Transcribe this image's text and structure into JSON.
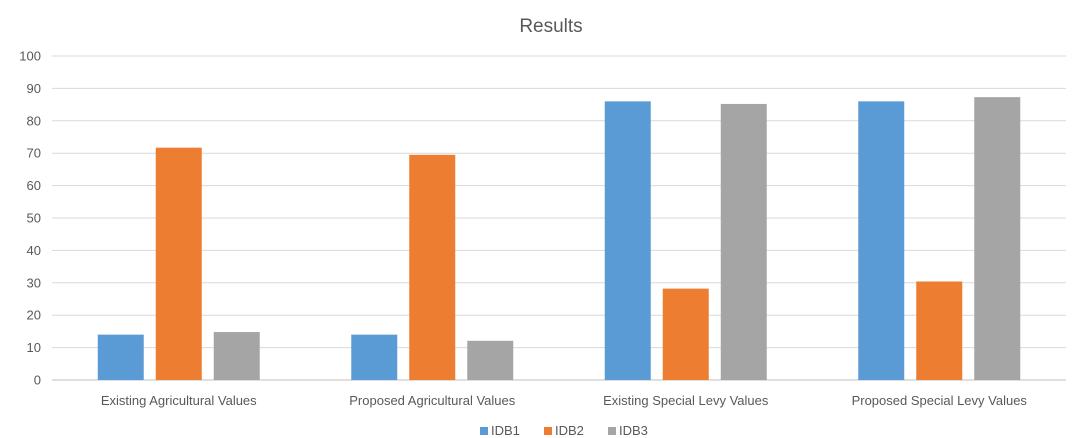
{
  "chart_data": {
    "type": "bar",
    "title": "Results",
    "xlabel": "",
    "ylabel": "",
    "ylim": [
      0,
      100
    ],
    "yticks": [
      0,
      10,
      20,
      30,
      40,
      50,
      60,
      70,
      80,
      90,
      100
    ],
    "grid": true,
    "legend_position": "bottom",
    "categories": [
      "Existing Agricultural Values",
      "Proposed Agricultural Values",
      "Existing Special Levy Values",
      "Proposed Special Levy Values"
    ],
    "series": [
      {
        "name": "IDB1",
        "color": "#5b9bd5",
        "values": [
          14,
          14,
          86,
          86
        ]
      },
      {
        "name": "IDB2",
        "color": "#ed7d31",
        "values": [
          71.7,
          69.5,
          28.2,
          30.4
        ]
      },
      {
        "name": "IDB3",
        "color": "#a5a5a5",
        "values": [
          14.8,
          12.1,
          85.2,
          87.3
        ]
      }
    ]
  }
}
